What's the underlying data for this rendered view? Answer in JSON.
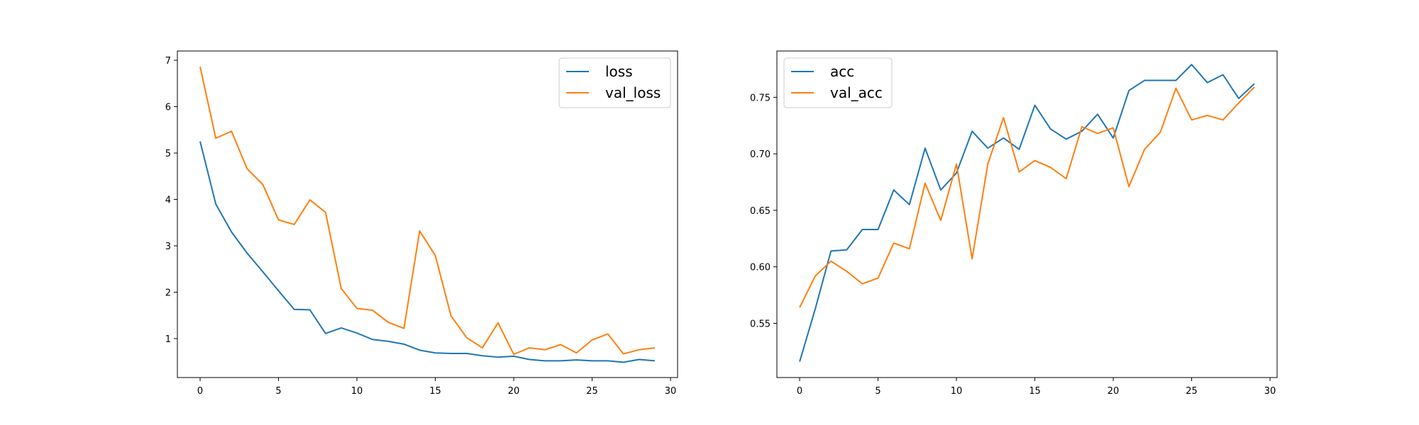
{
  "chart_data": [
    {
      "type": "line",
      "title": "",
      "xlabel": "",
      "ylabel": "",
      "xlim": [
        -1.45,
        30.45
      ],
      "ylim": [
        0.16,
        7.2
      ],
      "x_ticks": [
        0,
        5,
        10,
        15,
        20,
        25,
        30
      ],
      "y_ticks": [
        1,
        2,
        3,
        4,
        5,
        6,
        7
      ],
      "legend_position": "top-right",
      "x": [
        0,
        1,
        2,
        3,
        4,
        5,
        6,
        7,
        8,
        9,
        10,
        11,
        12,
        13,
        14,
        15,
        16,
        17,
        18,
        19,
        20,
        21,
        22,
        23,
        24,
        25,
        26,
        27,
        28,
        29
      ],
      "series": [
        {
          "name": "loss",
          "color": "#1f77b4",
          "values": [
            5.25,
            3.9,
            3.3,
            2.84,
            2.44,
            2.03,
            1.63,
            1.62,
            1.11,
            1.23,
            1.12,
            0.98,
            0.94,
            0.88,
            0.75,
            0.69,
            0.68,
            0.68,
            0.63,
            0.6,
            0.62,
            0.55,
            0.52,
            0.52,
            0.54,
            0.52,
            0.52,
            0.49,
            0.55,
            0.52
          ]
        },
        {
          "name": "val_loss",
          "color": "#ff7f0e",
          "values": [
            6.86,
            5.32,
            5.47,
            4.66,
            4.32,
            3.56,
            3.46,
            3.99,
            3.72,
            2.08,
            1.65,
            1.61,
            1.35,
            1.22,
            3.32,
            2.79,
            1.49,
            1.02,
            0.8,
            1.34,
            0.66,
            0.8,
            0.76,
            0.87,
            0.69,
            0.97,
            1.1,
            0.67,
            0.76,
            0.8
          ]
        }
      ]
    },
    {
      "type": "line",
      "title": "",
      "xlabel": "",
      "ylabel": "",
      "xlim": [
        -1.45,
        30.45
      ],
      "ylim": [
        0.502,
        0.791
      ],
      "x_ticks": [
        0,
        5,
        10,
        15,
        20,
        25,
        30
      ],
      "y_ticks": [
        0.55,
        0.6,
        0.65,
        0.7,
        0.75
      ],
      "y_tick_labels": [
        "0.55",
        "0.60",
        "0.65",
        "0.70",
        "0.75"
      ],
      "legend_position": "top-left",
      "x": [
        0,
        1,
        2,
        3,
        4,
        5,
        6,
        7,
        8,
        9,
        10,
        11,
        12,
        13,
        14,
        15,
        16,
        17,
        18,
        19,
        20,
        21,
        22,
        23,
        24,
        25,
        26,
        27,
        28,
        29
      ],
      "series": [
        {
          "name": "acc",
          "color": "#1f77b4",
          "values": [
            0.516,
            0.563,
            0.614,
            0.615,
            0.633,
            0.633,
            0.668,
            0.655,
            0.705,
            0.668,
            0.683,
            0.72,
            0.705,
            0.714,
            0.704,
            0.743,
            0.722,
            0.713,
            0.72,
            0.735,
            0.714,
            0.756,
            0.765,
            0.765,
            0.765,
            0.779,
            0.763,
            0.77,
            0.749,
            0.762
          ]
        },
        {
          "name": "val_acc",
          "color": "#ff7f0e",
          "values": [
            0.564,
            0.592,
            0.605,
            0.596,
            0.585,
            0.59,
            0.621,
            0.616,
            0.674,
            0.641,
            0.691,
            0.607,
            0.691,
            0.732,
            0.684,
            0.694,
            0.688,
            0.678,
            0.724,
            0.718,
            0.723,
            0.671,
            0.704,
            0.719,
            0.758,
            0.73,
            0.734,
            0.73,
            0.745,
            0.759
          ]
        }
      ]
    }
  ]
}
